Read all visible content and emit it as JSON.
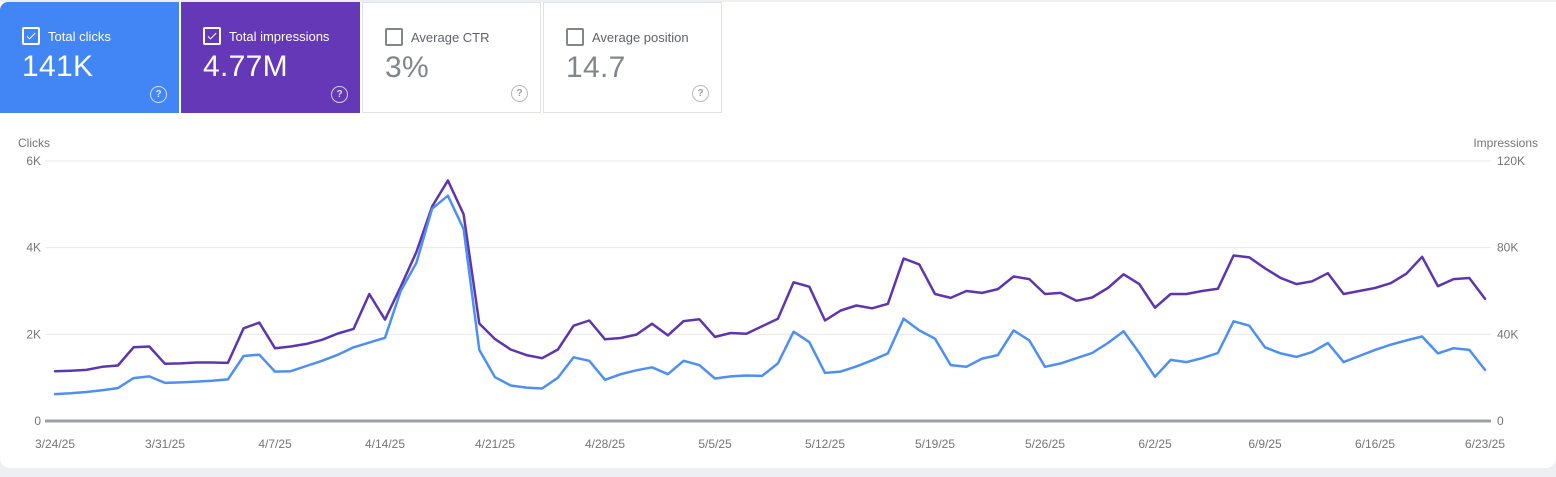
{
  "help_icon": "?",
  "cards": [
    {
      "label": "Total clicks",
      "value": "141K",
      "selected": true,
      "color": "#4285f4"
    },
    {
      "label": "Total impressions",
      "value": "4.77M",
      "selected": true,
      "color": "#6438b6"
    },
    {
      "label": "Average CTR",
      "value": "3%",
      "selected": false,
      "color": "#ffffff"
    },
    {
      "label": "Average position",
      "value": "14.7",
      "selected": false,
      "color": "#ffffff"
    }
  ],
  "chart_data": {
    "type": "line",
    "frequency": "daily",
    "start_date": "3/24/25",
    "end_date": "6/23/25",
    "x_tick_labels": [
      "3/24/25",
      "3/31/25",
      "4/7/25",
      "4/14/25",
      "4/21/25",
      "4/28/25",
      "5/5/25",
      "5/12/25",
      "5/19/25",
      "5/26/25",
      "6/2/25",
      "6/9/25",
      "6/16/25",
      "6/23/25"
    ],
    "left_axis": {
      "title": "Clicks",
      "ticks": [
        "0",
        "2K",
        "4K",
        "6K"
      ],
      "ylim": [
        0,
        6000
      ]
    },
    "right_axis": {
      "title": "Impressions",
      "ticks": [
        "0",
        "40K",
        "80K",
        "120K"
      ],
      "ylim": [
        0,
        120000
      ]
    },
    "grid": "horizontal",
    "dates": [
      "3/24/25",
      "3/25/25",
      "3/26/25",
      "3/27/25",
      "3/28/25",
      "3/29/25",
      "3/30/25",
      "3/31/25",
      "4/1/25",
      "4/2/25",
      "4/3/25",
      "4/4/25",
      "4/5/25",
      "4/6/25",
      "4/7/25",
      "4/8/25",
      "4/9/25",
      "4/10/25",
      "4/11/25",
      "4/12/25",
      "4/13/25",
      "4/14/25",
      "4/15/25",
      "4/16/25",
      "4/17/25",
      "4/18/25",
      "4/19/25",
      "4/20/25",
      "4/21/25",
      "4/22/25",
      "4/23/25",
      "4/24/25",
      "4/25/25",
      "4/26/25",
      "4/27/25",
      "4/28/25",
      "4/29/25",
      "4/30/25",
      "5/1/25",
      "5/2/25",
      "5/3/25",
      "5/4/25",
      "5/5/25",
      "5/6/25",
      "5/7/25",
      "5/8/25",
      "5/9/25",
      "5/10/25",
      "5/11/25",
      "5/12/25",
      "5/13/25",
      "5/14/25",
      "5/15/25",
      "5/16/25",
      "5/17/25",
      "5/18/25",
      "5/19/25",
      "5/20/25",
      "5/21/25",
      "5/22/25",
      "5/23/25",
      "5/24/25",
      "5/25/25",
      "5/26/25",
      "5/27/25",
      "5/28/25",
      "5/29/25",
      "5/30/25",
      "5/31/25",
      "6/1/25",
      "6/2/25",
      "6/3/25",
      "6/4/25",
      "6/5/25",
      "6/6/25",
      "6/7/25",
      "6/8/25",
      "6/9/25",
      "6/10/25",
      "6/11/25",
      "6/12/25",
      "6/13/25",
      "6/14/25",
      "6/15/25",
      "6/16/25",
      "6/17/25",
      "6/18/25",
      "6/19/25",
      "6/20/25",
      "6/21/25",
      "6/22/25",
      "6/23/25"
    ],
    "series": [
      {
        "name": "Clicks",
        "axis": "left",
        "color": "#4d8ff5",
        "values": [
          620,
          640,
          670,
          710,
          760,
          990,
          1030,
          880,
          890,
          910,
          930,
          960,
          1500,
          1530,
          1140,
          1150,
          1270,
          1390,
          1530,
          1700,
          1810,
          1920,
          3000,
          3650,
          4900,
          5200,
          4430,
          1640,
          1010,
          820,
          770,
          750,
          1000,
          1470,
          1390,
          950,
          1080,
          1170,
          1240,
          1080,
          1390,
          1290,
          980,
          1030,
          1050,
          1040,
          1330,
          2060,
          1820,
          1110,
          1140,
          1260,
          1400,
          1560,
          2360,
          2090,
          1900,
          1290,
          1250,
          1440,
          1520,
          2090,
          1860,
          1250,
          1330,
          1450,
          1570,
          1800,
          2070,
          1570,
          1020,
          1410,
          1360,
          1450,
          1570,
          2300,
          2200,
          1700,
          1560,
          1480,
          1590,
          1800,
          1360,
          1500,
          1640,
          1760,
          1860,
          1950,
          1560,
          1680,
          1640,
          1180
        ]
      },
      {
        "name": "Impressions",
        "axis": "right",
        "color": "#5e35b1",
        "values": [
          23000,
          23200,
          23600,
          25000,
          25600,
          34000,
          34400,
          26400,
          26600,
          27000,
          27000,
          26800,
          42800,
          45400,
          33600,
          34400,
          35600,
          37500,
          40400,
          42500,
          58600,
          46800,
          62000,
          78000,
          99000,
          111000,
          95400,
          45000,
          37800,
          33000,
          30400,
          29000,
          33000,
          44000,
          46400,
          37700,
          38300,
          39900,
          44900,
          39500,
          46100,
          47000,
          38800,
          40600,
          40300,
          43700,
          47200,
          64000,
          62000,
          46400,
          51000,
          53300,
          52000,
          54100,
          75000,
          72300,
          58600,
          56800,
          60000,
          59100,
          60900,
          66700,
          65500,
          58600,
          59100,
          55500,
          57000,
          61400,
          67700,
          63200,
          52300,
          58600,
          58600,
          60000,
          61000,
          76400,
          75500,
          70500,
          66000,
          63200,
          64500,
          68200,
          58600,
          60000,
          61400,
          63600,
          68000,
          75800,
          62200,
          65500,
          66000,
          56400
        ]
      }
    ]
  }
}
